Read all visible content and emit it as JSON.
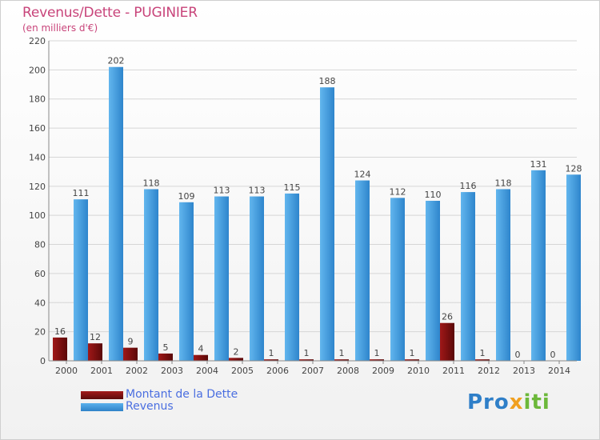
{
  "chart_data": {
    "type": "bar",
    "title": "Revenus/Dette - PUGINIER",
    "subtitle": "(en milliers d'€)",
    "categories": [
      "2000",
      "2001",
      "2002",
      "2003",
      "2004",
      "2005",
      "2006",
      "2007",
      "2008",
      "2009",
      "2010",
      "2011",
      "2012",
      "2013",
      "2014"
    ],
    "series": [
      {
        "name": "Montant de la Dette",
        "color": "#7a1010",
        "values": [
          16,
          12,
          9,
          5,
          4,
          2,
          1,
          1,
          1,
          1,
          1,
          26,
          1,
          0,
          0
        ]
      },
      {
        "name": "Revenus",
        "color": "#3f97dc",
        "values": [
          111,
          202,
          118,
          109,
          113,
          113,
          115,
          188,
          124,
          112,
          110,
          116,
          118,
          131,
          128
        ]
      }
    ],
    "ylim": [
      0,
      220
    ],
    "yticks": [
      0,
      20,
      40,
      60,
      80,
      100,
      120,
      140,
      160,
      180,
      200,
      220
    ],
    "grid": true,
    "legend": "bottom-left"
  },
  "logo": {
    "text_p1": "Pro",
    "text_p2": "x",
    "text_p3": "iti"
  }
}
